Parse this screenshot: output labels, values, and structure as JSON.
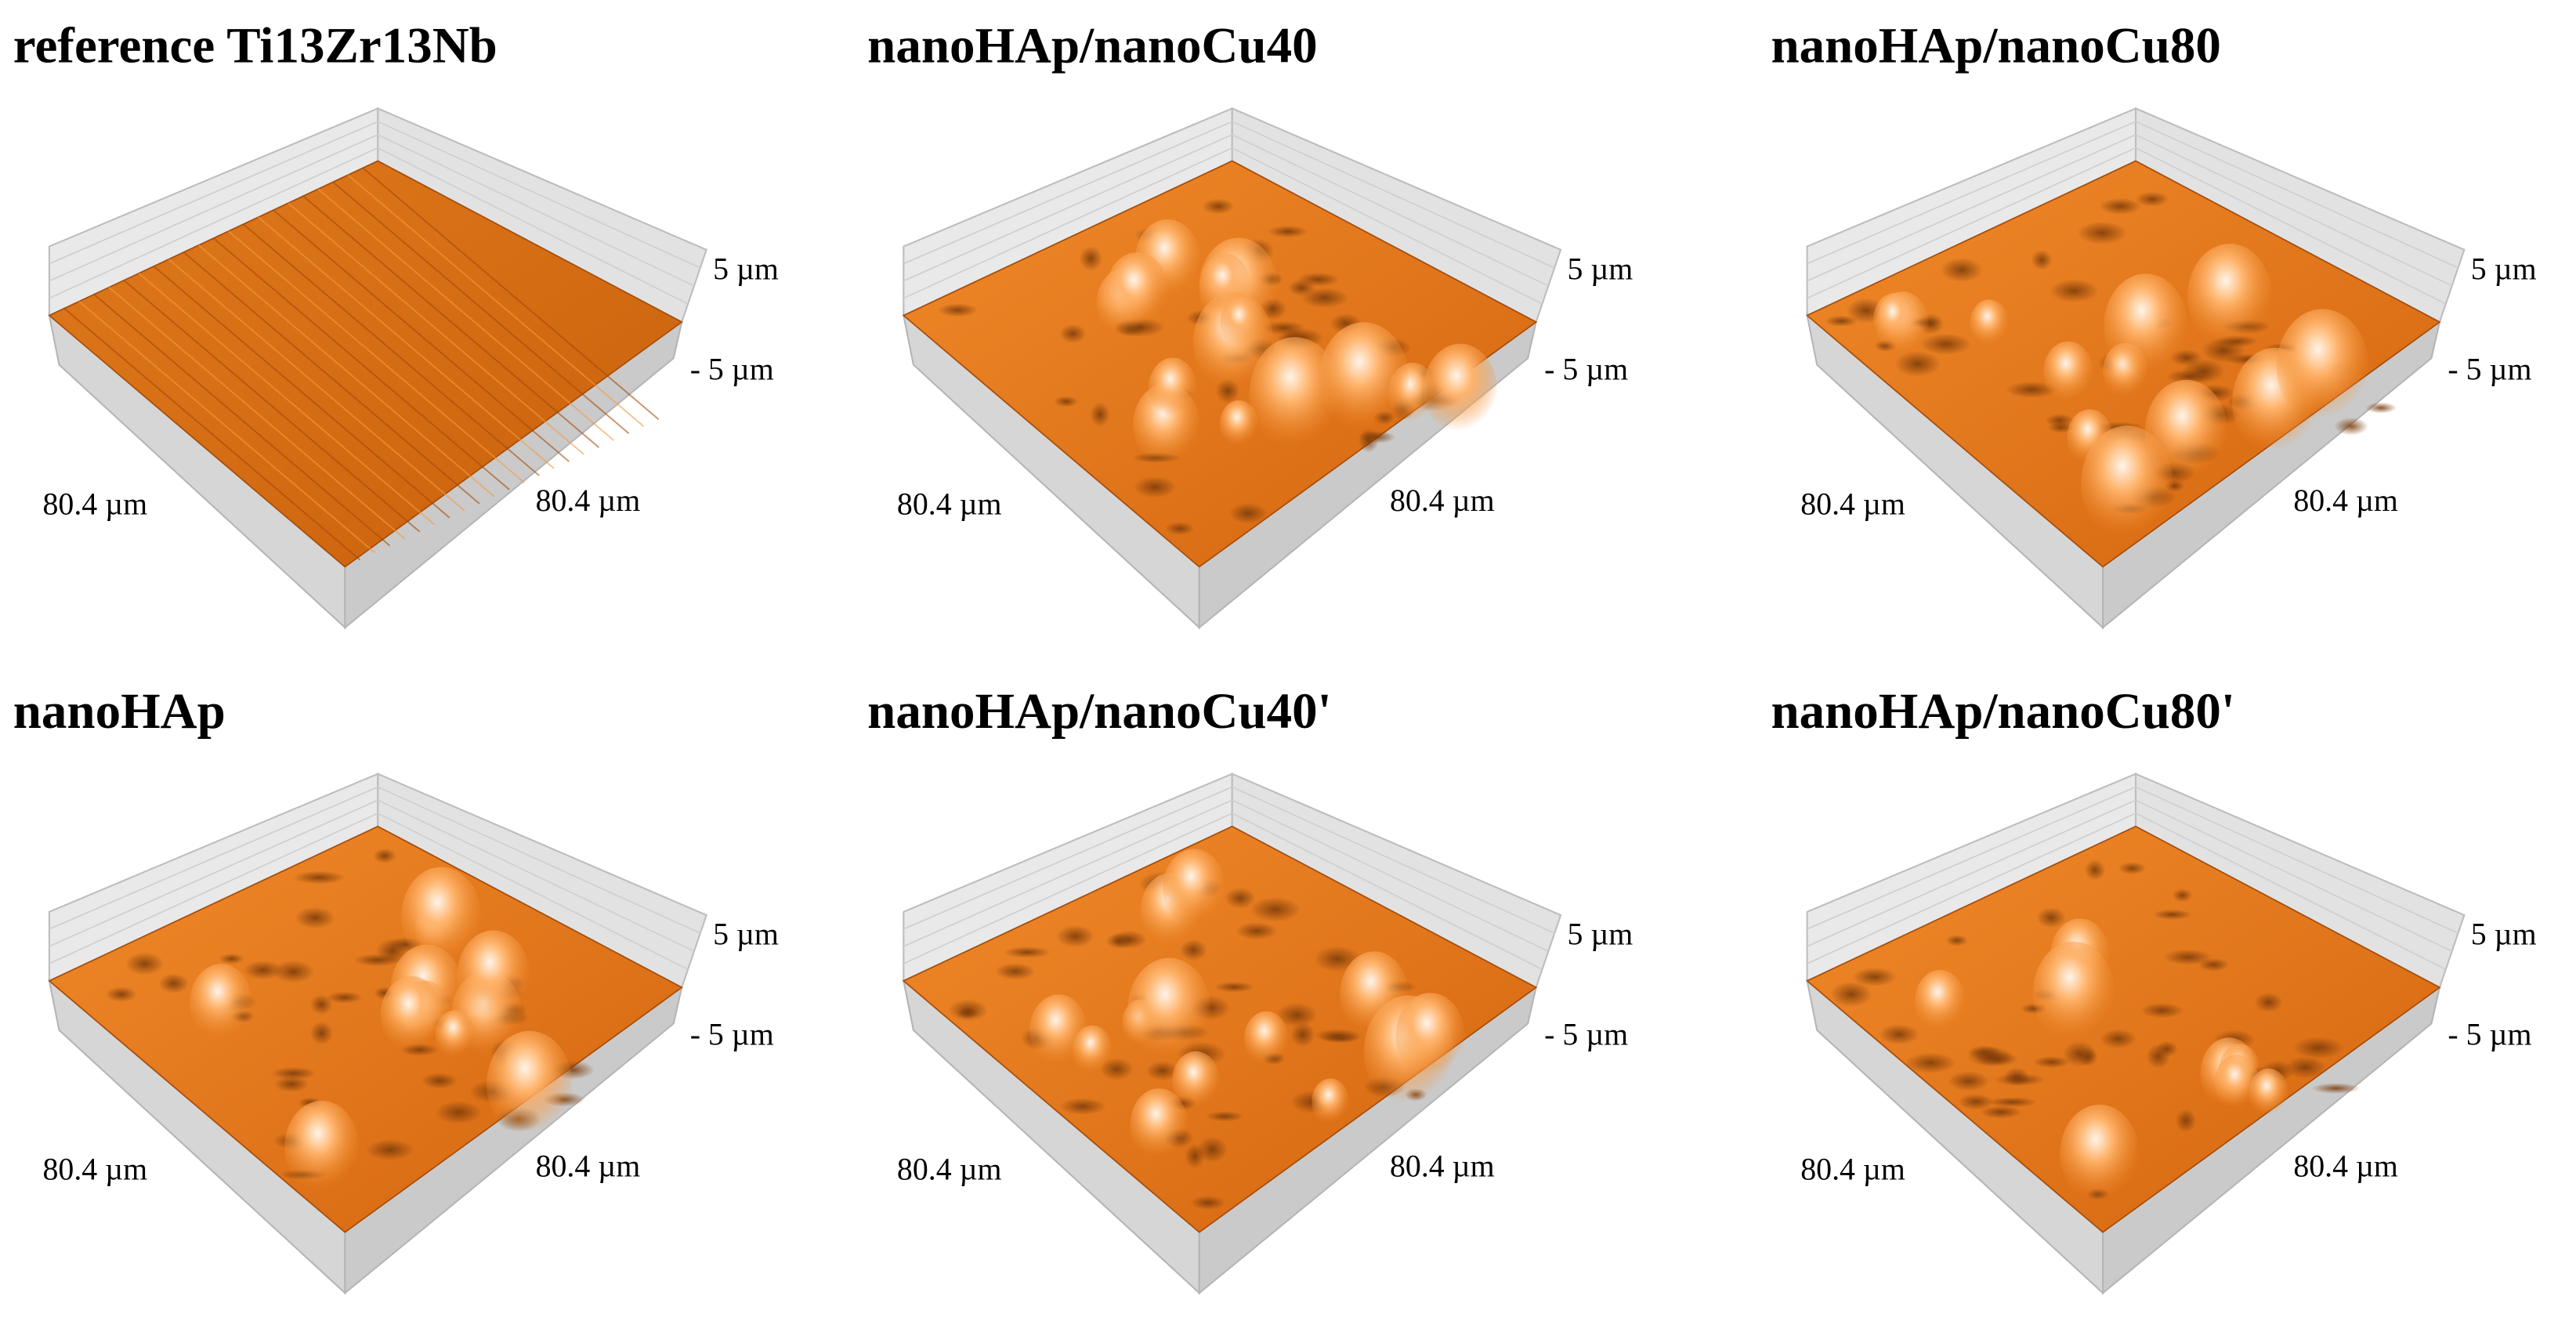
{
  "panels": [
    {
      "title": "reference Ti13Zr13Nb",
      "z_max": "5 µm",
      "z_min": "- 5 µm",
      "x_size": "80.4 µm",
      "y_size": "80.4 µm"
    },
    {
      "title": "nanoHAp/nanoCu40",
      "z_max": "5 µm",
      "z_min": "- 5 µm",
      "x_size": "80.4 µm",
      "y_size": "80.4 µm"
    },
    {
      "title": "nanoHAp/nanoCu80",
      "z_max": "5 µm",
      "z_min": "- 5 µm",
      "x_size": "80.4 µm",
      "y_size": "80.4 µm"
    },
    {
      "title": "nanoHAp",
      "z_max": "5 µm",
      "z_min": "- 5 µm",
      "x_size": "80.4 µm",
      "y_size": "80.4 µm"
    },
    {
      "title": "nanoHAp/nanoCu40'",
      "z_max": "5 µm",
      "z_min": "- 5 µm",
      "x_size": "80.4 µm",
      "y_size": "80.4 µm"
    },
    {
      "title": "nanoHAp/nanoCu80'",
      "z_max": "5 µm",
      "z_min": "- 5 µm",
      "x_size": "80.4 µm",
      "y_size": "80.4 µm"
    }
  ]
}
